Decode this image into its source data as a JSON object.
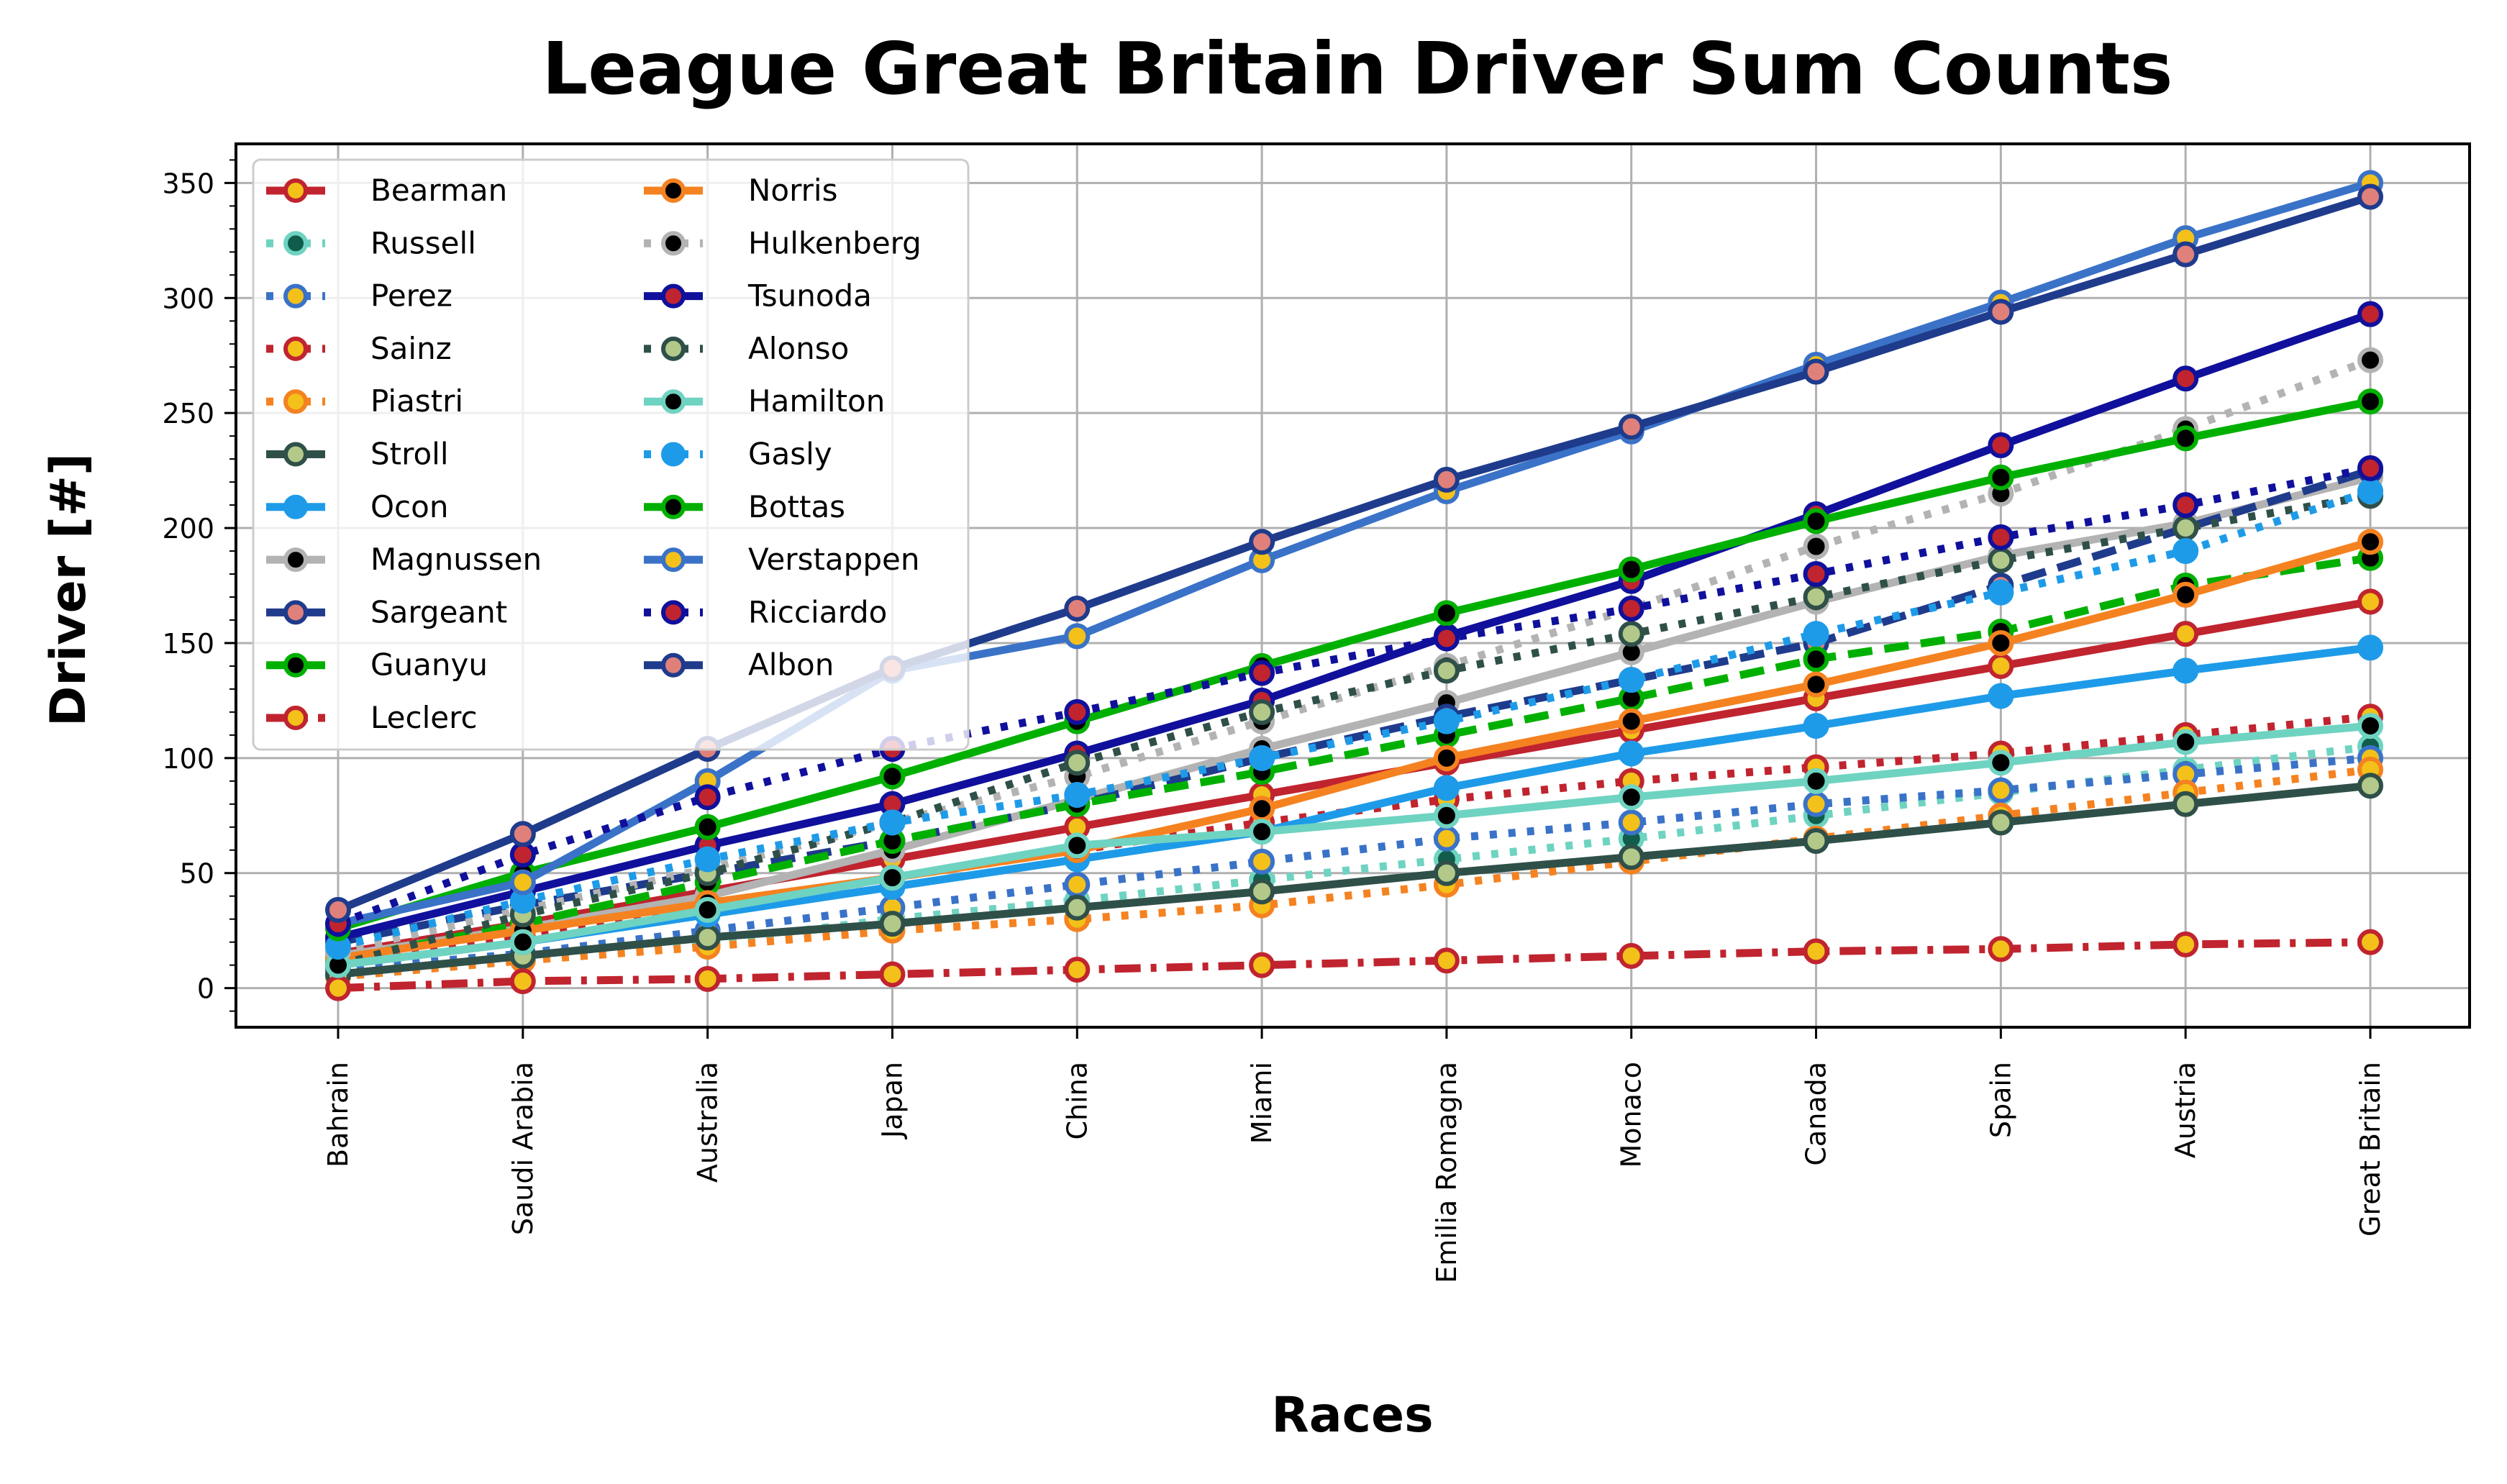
{
  "chart_data": {
    "type": "line",
    "title": "League Great Britain Driver Sum Counts",
    "xlabel": "Races",
    "ylabel": "Driver [#]",
    "categories": [
      "Bahrain",
      "Saudi Arabia",
      "Australia",
      "Japan",
      "China",
      "Miami",
      "Emilia Romagna",
      "Monaco",
      "Canada",
      "Spain",
      "Austria",
      "Great Britain"
    ],
    "ylim": [
      -17,
      367
    ],
    "yticks": [
      0,
      50,
      100,
      150,
      200,
      250,
      300,
      350
    ],
    "grid": true,
    "legend_position": "top-left",
    "series": [
      {
        "name": "Bearman",
        "color": "#c0242f",
        "dash": "solid",
        "marker_fill": "#f3c11a",
        "values": [
          15,
          28,
          42,
          56,
          70,
          84,
          98,
          112,
          126,
          140,
          154,
          168
        ]
      },
      {
        "name": "Russell",
        "color": "#6fd3c1",
        "dash": "dotted",
        "marker_fill": "#0f5d4a",
        "values": [
          5,
          12,
          20,
          30,
          38,
          47,
          56,
          65,
          75,
          85,
          95,
          105
        ]
      },
      {
        "name": "Perez",
        "color": "#3a72c8",
        "dash": "dotted",
        "marker_fill": "#f3c11a",
        "values": [
          8,
          15,
          25,
          35,
          45,
          55,
          65,
          72,
          80,
          86,
          93,
          100
        ]
      },
      {
        "name": "Sainz",
        "color": "#c0242f",
        "dash": "dotted",
        "marker_fill": "#f3c11a",
        "values": [
          10,
          22,
          34,
          48,
          60,
          72,
          82,
          90,
          96,
          102,
          110,
          118
        ]
      },
      {
        "name": "Piastri",
        "color": "#f58220",
        "dash": "dotted",
        "marker_fill": "#f3c11a",
        "values": [
          5,
          12,
          18,
          25,
          30,
          36,
          45,
          55,
          65,
          75,
          85,
          95
        ]
      },
      {
        "name": "Stroll",
        "color": "#2f5049",
        "dash": "solid",
        "marker_fill": "#b3c98a",
        "values": [
          6,
          14,
          22,
          28,
          35,
          42,
          50,
          57,
          64,
          72,
          80,
          88
        ]
      },
      {
        "name": "Ocon",
        "color": "#1e9be8",
        "dash": "solid",
        "marker_fill": "#1e9be8",
        "values": [
          10,
          20,
          32,
          44,
          56,
          68,
          87,
          102,
          114,
          127,
          138,
          148
        ]
      },
      {
        "name": "Magnussen",
        "color": "#b3b3b3",
        "dash": "solid",
        "marker_fill": "#000000",
        "values": [
          14,
          26,
          40,
          60,
          82,
          104,
          124,
          146,
          168,
          188,
          202,
          222
        ]
      },
      {
        "name": "Sargeant",
        "color": "#1f3b8c",
        "dash": "dashed",
        "marker_fill": "#e0807b",
        "values": [
          20,
          36,
          50,
          64,
          80,
          100,
          118,
          134,
          150,
          175,
          200,
          225
        ]
      },
      {
        "name": "Guanyu",
        "color": "#00b000",
        "dash": "dashed",
        "marker_fill": "#000000",
        "values": [
          12,
          28,
          46,
          64,
          80,
          94,
          110,
          126,
          143,
          155,
          175,
          187
        ]
      },
      {
        "name": "Leclerc",
        "color": "#c0242f",
        "dash": "dashdot",
        "marker_fill": "#f3c11a",
        "values": [
          0,
          3,
          4,
          6,
          8,
          10,
          12,
          14,
          16,
          17,
          19,
          20
        ]
      },
      {
        "name": "Norris",
        "color": "#f58220",
        "dash": "solid",
        "marker_fill": "#000000",
        "values": [
          13,
          25,
          37,
          48,
          60,
          78,
          100,
          116,
          132,
          150,
          171,
          194
        ]
      },
      {
        "name": "Hulkenberg",
        "color": "#b3b3b3",
        "dash": "dotted",
        "marker_fill": "#000000",
        "values": [
          16,
          34,
          52,
          72,
          92,
          116,
          140,
          165,
          192,
          215,
          243,
          273
        ]
      },
      {
        "name": "Tsunoda",
        "color": "#10109c",
        "dash": "solid",
        "marker_fill": "#c0242f",
        "values": [
          22,
          42,
          62,
          80,
          102,
          125,
          153,
          177,
          206,
          236,
          265,
          293
        ]
      },
      {
        "name": "Alonso",
        "color": "#2f5049",
        "dash": "dotted",
        "marker_fill": "#b3c98a",
        "values": [
          10,
          32,
          50,
          72,
          98,
          120,
          138,
          154,
          170,
          186,
          200,
          214
        ]
      },
      {
        "name": "Hamilton",
        "color": "#6fd3c1",
        "dash": "solid",
        "marker_fill": "#000000",
        "values": [
          10,
          20,
          34,
          48,
          62,
          68,
          75,
          83,
          90,
          98,
          107,
          114
        ]
      },
      {
        "name": "Gasly",
        "color": "#1e9be8",
        "dash": "dotted",
        "marker_fill": "#1e9be8",
        "values": [
          18,
          38,
          56,
          72,
          84,
          100,
          116,
          134,
          154,
          172,
          190,
          216
        ]
      },
      {
        "name": "Bottas",
        "color": "#00b000",
        "dash": "solid",
        "marker_fill": "#000000",
        "values": [
          26,
          50,
          70,
          92,
          116,
          140,
          163,
          182,
          203,
          222,
          239,
          255
        ]
      },
      {
        "name": "Verstappen",
        "color": "#3a72c8",
        "dash": "solid",
        "marker_fill": "#f3c11a",
        "values": [
          28,
          46,
          90,
          138,
          153,
          186,
          216,
          242,
          271,
          298,
          326,
          350
        ]
      },
      {
        "name": "Ricciardo",
        "color": "#10109c",
        "dash": "dotted",
        "marker_fill": "#c0242f",
        "values": [
          28,
          58,
          83,
          104,
          120,
          137,
          152,
          165,
          180,
          196,
          210,
          226
        ]
      },
      {
        "name": "Albon",
        "color": "#1f3b8c",
        "dash": "solid",
        "marker_fill": "#e0807b",
        "values": [
          34,
          67,
          104,
          139,
          165,
          194,
          221,
          244,
          268,
          294,
          319,
          344
        ]
      }
    ]
  }
}
